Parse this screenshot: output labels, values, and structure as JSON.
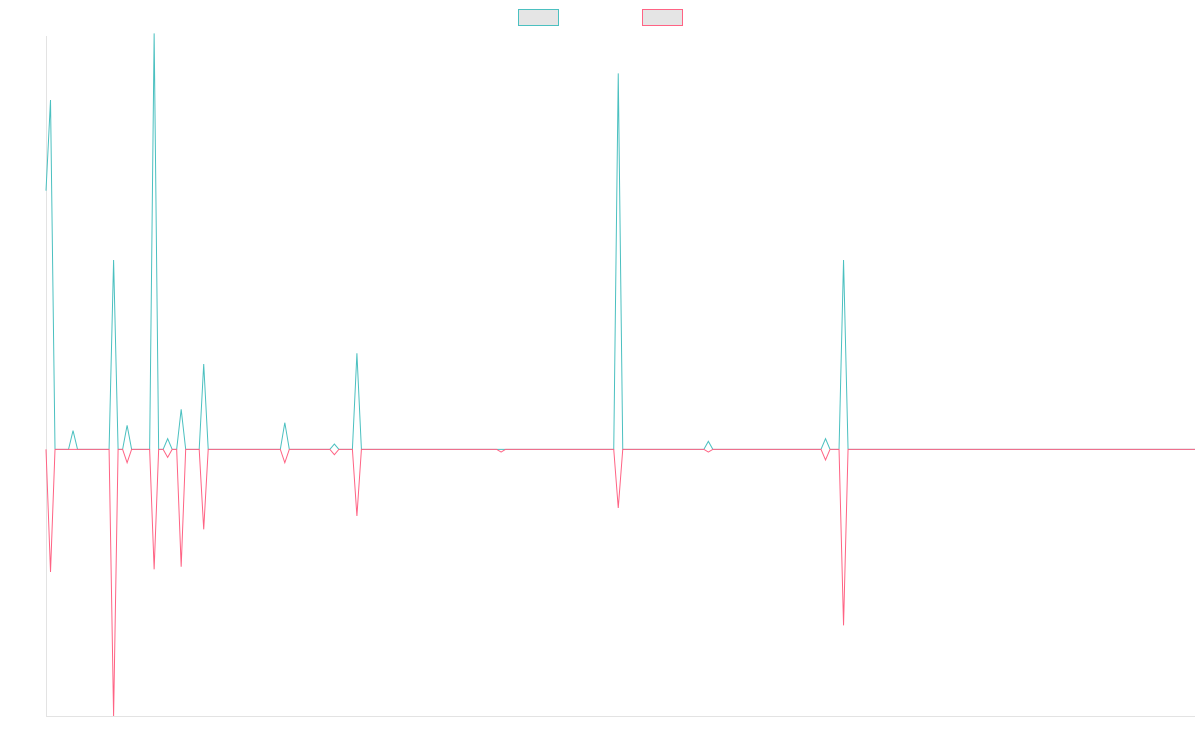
{
  "chart_data": {
    "type": "line",
    "title": "",
    "xlabel": "",
    "ylabel": "",
    "legend": "top-center",
    "grid": false,
    "x_range": [
      0,
      255
    ],
    "y_range": [
      -100,
      155
    ],
    "series": [
      {
        "color": "#4bc0c0",
        "legend_fill": "#e5e5e5",
        "points": [
          [
            0,
            97
          ],
          [
            1,
            131
          ],
          [
            2,
            0
          ],
          [
            5,
            0
          ],
          [
            6,
            7
          ],
          [
            7,
            0
          ],
          [
            14,
            0
          ],
          [
            15,
            71
          ],
          [
            16,
            0
          ],
          [
            17,
            0
          ],
          [
            18,
            9
          ],
          [
            19,
            0
          ],
          [
            23,
            0
          ],
          [
            24,
            156
          ],
          [
            25,
            0
          ],
          [
            26,
            0
          ],
          [
            27,
            4
          ],
          [
            28,
            0
          ],
          [
            29,
            0
          ],
          [
            30,
            15
          ],
          [
            31,
            0
          ],
          [
            34,
            0
          ],
          [
            35,
            32
          ],
          [
            36,
            0
          ],
          [
            52,
            0
          ],
          [
            53,
            10
          ],
          [
            54,
            0
          ],
          [
            63,
            0
          ],
          [
            64,
            2
          ],
          [
            65,
            0
          ],
          [
            68,
            0
          ],
          [
            69,
            36
          ],
          [
            70,
            0
          ],
          [
            72,
            0
          ],
          [
            73,
            0
          ],
          [
            74,
            0
          ],
          [
            100,
            0
          ],
          [
            101,
            0
          ],
          [
            102,
            0
          ],
          [
            126,
            0
          ],
          [
            127,
            141
          ],
          [
            128,
            0
          ],
          [
            146,
            0
          ],
          [
            147,
            3
          ],
          [
            148,
            0
          ],
          [
            172,
            0
          ],
          [
            173,
            4
          ],
          [
            174,
            0
          ],
          [
            176,
            0
          ],
          [
            177,
            71
          ],
          [
            178,
            0
          ],
          [
            255,
            0
          ]
        ]
      },
      {
        "color": "#ff6384",
        "legend_fill": "#e5e5e5",
        "points": [
          [
            0,
            0
          ],
          [
            1,
            -46
          ],
          [
            2,
            0
          ],
          [
            14,
            0
          ],
          [
            15,
            -100
          ],
          [
            16,
            0
          ],
          [
            17,
            0
          ],
          [
            18,
            -5
          ],
          [
            19,
            0
          ],
          [
            23,
            0
          ],
          [
            24,
            -45
          ],
          [
            25,
            0
          ],
          [
            26,
            0
          ],
          [
            27,
            -3
          ],
          [
            28,
            0
          ],
          [
            29,
            0
          ],
          [
            30,
            -44
          ],
          [
            31,
            0
          ],
          [
            34,
            0
          ],
          [
            35,
            -30
          ],
          [
            36,
            0
          ],
          [
            52,
            0
          ],
          [
            53,
            -5
          ],
          [
            54,
            0
          ],
          [
            63,
            0
          ],
          [
            64,
            -2
          ],
          [
            65,
            0
          ],
          [
            68,
            0
          ],
          [
            69,
            -25
          ],
          [
            70,
            0
          ],
          [
            72,
            0
          ],
          [
            73,
            0
          ],
          [
            74,
            0
          ],
          [
            100,
            0
          ],
          [
            101,
            -1
          ],
          [
            102,
            0
          ],
          [
            126,
            0
          ],
          [
            127,
            -22
          ],
          [
            128,
            0
          ],
          [
            146,
            0
          ],
          [
            147,
            -1
          ],
          [
            148,
            0
          ],
          [
            172,
            0
          ],
          [
            173,
            -4
          ],
          [
            174,
            0
          ],
          [
            176,
            0
          ],
          [
            177,
            -66
          ],
          [
            178,
            0
          ],
          [
            255,
            0
          ]
        ]
      }
    ]
  }
}
